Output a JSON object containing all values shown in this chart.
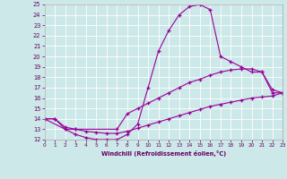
{
  "xlabel": "Windchill (Refroidissement éolien,°C)",
  "bg_color": "#cce8e8",
  "line_color": "#990099",
  "grid_color": "#ffffff",
  "xmin": 0,
  "xmax": 23,
  "ymin": 12,
  "ymax": 25,
  "yticks": [
    12,
    13,
    14,
    15,
    16,
    17,
    18,
    19,
    20,
    21,
    22,
    23,
    24,
    25
  ],
  "xticks": [
    0,
    1,
    2,
    3,
    4,
    5,
    6,
    7,
    8,
    9,
    10,
    11,
    12,
    13,
    14,
    15,
    16,
    17,
    18,
    19,
    20,
    21,
    22,
    23
  ],
  "line1_x": [
    0,
    1,
    2,
    3,
    4,
    5,
    6,
    7,
    8,
    9,
    10,
    11,
    12,
    13,
    14,
    15,
    16,
    17,
    18,
    19,
    20,
    21,
    22,
    23
  ],
  "line1_y": [
    14.0,
    14.0,
    13.0,
    12.5,
    12.2,
    12.0,
    12.0,
    12.0,
    12.5,
    13.5,
    17.0,
    20.5,
    22.5,
    24.0,
    24.8,
    25.0,
    24.5,
    20.0,
    19.5,
    19.0,
    18.5,
    18.5,
    16.5,
    16.5
  ],
  "line2_x": [
    0,
    2,
    3,
    7,
    8,
    9,
    10,
    11,
    12,
    13,
    14,
    15,
    16,
    17,
    18,
    19,
    20,
    21,
    22,
    23
  ],
  "line2_y": [
    14.0,
    13.0,
    13.0,
    13.0,
    14.5,
    15.0,
    15.5,
    16.0,
    16.5,
    17.0,
    17.5,
    17.8,
    18.2,
    18.5,
    18.7,
    18.8,
    18.8,
    18.5,
    16.8,
    16.5
  ],
  "line3_x": [
    0,
    1,
    2,
    3,
    4,
    5,
    6,
    7,
    8,
    9,
    10,
    11,
    12,
    13,
    14,
    15,
    16,
    17,
    18,
    19,
    20,
    21,
    22,
    23
  ],
  "line3_y": [
    14.0,
    14.0,
    13.2,
    13.0,
    12.8,
    12.7,
    12.6,
    12.6,
    12.8,
    13.1,
    13.4,
    13.7,
    14.0,
    14.3,
    14.6,
    14.9,
    15.2,
    15.4,
    15.6,
    15.8,
    16.0,
    16.1,
    16.2,
    16.5
  ]
}
